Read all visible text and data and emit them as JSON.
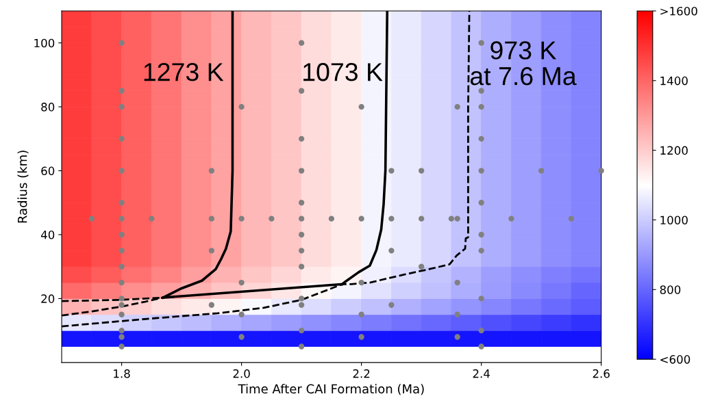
{
  "chart_data": {
    "type": "scatter",
    "xlabel": "Time After CAI Formation (Ma)",
    "ylabel": "Radius (km)",
    "xlim": [
      1.7,
      2.6
    ],
    "xticks": [
      {
        "value": 1.8,
        "label": "1.8"
      },
      {
        "value": 2.0,
        "label": "2.0"
      },
      {
        "value": 2.2,
        "label": "2.2"
      },
      {
        "value": 2.4,
        "label": "2.4"
      },
      {
        "value": 2.6,
        "label": "2.6"
      }
    ],
    "ylim": [
      0,
      110
    ],
    "yticks": [
      20,
      40,
      60,
      80,
      100
    ],
    "clim": [
      600,
      1600
    ],
    "cticks": [
      {
        "value": 600,
        "label": "<600"
      },
      800,
      1000,
      1200,
      1400,
      {
        "value": 1600,
        "label": ">1600"
      }
    ],
    "annotations": [
      "1273 K",
      "1073 K",
      "973 K\nat 7.6 Ma"
    ],
    "series": [
      {
        "type": "scatter",
        "marker": "square",
        "colors": [
          "#1414ff",
          "#1414ff",
          "#1414ff",
          "#1414ff",
          "#1414ff",
          "#1414ff",
          "#1414ff",
          "#1414ff",
          "#1414ff",
          "#1414ff",
          "#1414ff",
          "#1414ff",
          "#1414ff",
          "#1414ff",
          "#1414ff",
          "#1414ff",
          "#1414ff",
          "#1414ff",
          "#e6e6ff",
          "#dbdbff",
          "#d1d1ff",
          "#c7c7ff",
          "#bdbdff",
          "#b0b0ff",
          "#a6a6ff",
          "#9c9cff",
          "#9191ff",
          "#8787ff",
          "#7d7dff",
          "#7373ff",
          "#6969ff",
          "#5e5eff",
          "#5252ff",
          "#4747ff",
          "#3d3dff",
          "#3333ff",
          "#ffb3b3",
          "#ffc2c2",
          "#ffcfcf",
          "#ffdede",
          "#ffebeb",
          "#fff5f5",
          "#f7f7ff",
          "#e8e8ff",
          "#dbdbff",
          "#ccccff",
          "#bfbfff",
          "#b0b0ff",
          "#a3a3ff",
          "#9494ff",
          "#8787ff",
          "#7878ff",
          "#6b6bff",
          "#5c5cff",
          "#ff6b6b",
          "#ff7d7d",
          "#ff8f8f",
          "#ffa1a1",
          "#ffb3b3",
          "#ffc4c4",
          "#ffd6d6",
          "#ffe6e6",
          "#fff7f7",
          "#f5f5ff",
          "#e3e3ff",
          "#d1d1ff",
          "#bfbfff",
          "#adadff",
          "#9c9cff",
          "#8a8aff",
          "#7878ff",
          "#6666ff",
          "#ff4d4d",
          "#ff5c5c",
          "#ff7070",
          "#ff8585",
          "#ff9e9e",
          "#ffb3b3",
          "#ffc7c7",
          "#ffd6d6",
          "#ffebeb",
          "#fff5f5",
          "#f0f0ff",
          "#dbdbff",
          "#c7c7ff",
          "#b3b3ff",
          "#9e9eff",
          "#8f8fff",
          "#8080ff",
          "#7575ff",
          "#ff3d3d",
          "#ff4d4d",
          "#ff6161",
          "#ff7575",
          "#ff8f8f",
          "#ffa3a3",
          "#ffb8b8",
          "#ffc7c7",
          "#ffdbdb",
          "#ffebeb",
          "#f5f5ff",
          "#ebebff",
          "#d6d6ff",
          "#c2c2ff",
          "#adadff",
          "#9e9eff",
          "#8f8fff",
          "#8585ff",
          "#ff3d3d",
          "#ff4d4d",
          "#ff6161",
          "#ff7575",
          "#ff8f8f",
          "#ffa3a3",
          "#ffb8b8",
          "#ffc7c7",
          "#ffdbdb",
          "#ffebeb",
          "#f5f5ff",
          "#ebebff",
          "#d6d6ff",
          "#c2c2ff",
          "#adadff",
          "#9e9eff",
          "#8f8fff",
          "#8585ff",
          "#ff3d3d",
          "#ff4d4d",
          "#ff6161",
          "#ff7575",
          "#ff8f8f",
          "#ffa3a3",
          "#ffb8b8",
          "#ffc7c7",
          "#ffdbdb",
          "#ffebeb",
          "#f5f5ff",
          "#ebebff",
          "#d6d6ff",
          "#c2c2ff",
          "#adadff",
          "#9e9eff",
          "#8f8fff",
          "#8585ff",
          "#ff3d3d",
          "#ff4d4d",
          "#ff6161",
          "#ff7575",
          "#ff8f8f",
          "#ffa3a3",
          "#ffb8b8",
          "#ffc7c7",
          "#ffdbdb",
          "#ffebeb",
          "#f5f5ff",
          "#ebebff",
          "#d6d6ff",
          "#c2c2ff",
          "#adadff",
          "#9e9eff",
          "#8f8fff",
          "#8585ff",
          "#ff3d3d",
          "#ff4d4d",
          "#ff6161",
          "#ff7575",
          "#ff8f8f",
          "#ffa3a3",
          "#ffb8b8",
          "#ffc7c7",
          "#ffdbdb",
          "#ffebeb",
          "#f5f5ff",
          "#ebebff",
          "#d6d6ff",
          "#c2c2ff",
          "#adadff",
          "#9e9eff",
          "#8f8fff",
          "#8585ff",
          "#ff3d3d",
          "#ff4d4d",
          "#ff6161",
          "#ff7575",
          "#ff8f8f",
          "#ffa3a3",
          "#ffb8b8",
          "#ffc7c7",
          "#ffdbdb",
          "#ffebeb",
          "#f5f5ff",
          "#ebebff",
          "#d6d6ff",
          "#c2c2ff",
          "#adadff",
          "#9e9eff",
          "#8f8fff",
          "#8585ff",
          "#ff3d3d",
          "#ff4d4d",
          "#ff6161",
          "#ff7575",
          "#ff8f8f",
          "#ffa3a3",
          "#ffb8b8",
          "#ffc7c7",
          "#ffdbdb",
          "#ffebeb",
          "#f5f5ff",
          "#ebebff",
          "#d6d6ff",
          "#c2c2ff",
          "#adadff",
          "#9e9eff",
          "#8f8fff",
          "#8585ff",
          "#ff3d3d",
          "#ff4d4d",
          "#ff6161",
          "#ff7575",
          "#ff8f8f",
          "#ffa3a3",
          "#ffb8b8",
          "#ffc7c7",
          "#ffdbdb",
          "#ffebeb",
          "#f5f5ff",
          "#ebebff",
          "#d6d6ff",
          "#c2c2ff",
          "#adadff",
          "#9e9eff",
          "#8f8fff",
          "#8585ff",
          "#ff3d3d",
          "#ff4d4d",
          "#ff6161",
          "#ff7575",
          "#ff8f8f",
          "#ffa3a3",
          "#ffb8b8",
          "#ffc7c7",
          "#ffdbdb",
          "#ffebeb",
          "#f5f5ff",
          "#ebebff",
          "#d6d6ff",
          "#c2c2ff",
          "#adadff",
          "#9e9eff",
          "#8f8fff",
          "#8585ff",
          "#ff3d3d",
          "#ff4d4d",
          "#ff6161",
          "#ff7575",
          "#ff8f8f",
          "#ffa3a3",
          "#ffb8b8",
          "#ffc7c7",
          "#ffdbdb",
          "#ffebeb",
          "#f5f5ff",
          "#ebebff",
          "#d6d6ff",
          "#c2c2ff",
          "#adadff",
          "#9e9eff",
          "#8f8fff",
          "#8585ff",
          "#ff3d3d",
          "#ff4d4d",
          "#ff6161",
          "#ff7575",
          "#ff8f8f",
          "#ffa3a3",
          "#ffb8b8",
          "#ffc7c7",
          "#ffdbdb",
          "#ffebeb",
          "#f5f5ff",
          "#ebebff",
          "#d6d6ff",
          "#c2c2ff",
          "#adadff",
          "#9e9eff",
          "#8f8fff",
          "#8585ff",
          "#ff3d3d",
          "#ff4d4d",
          "#ff6161",
          "#ff7575",
          "#ff8f8f",
          "#ffa3a3",
          "#ffb8b8",
          "#ffc7c7",
          "#ffdbdb",
          "#ffebeb",
          "#f5f5ff",
          "#ebebff",
          "#d6d6ff",
          "#c2c2ff",
          "#adadff",
          "#9e9eff",
          "#8f8fff",
          "#8585ff",
          "#ff3d3d",
          "#ff4d4d",
          "#ff6161",
          "#ff7575",
          "#ff8f8f",
          "#ffa3a3",
          "#ffb8b8",
          "#ffc7c7",
          "#ffdbdb",
          "#ffebeb",
          "#f5f5ff",
          "#ebebff",
          "#d6d6ff",
          "#c2c2ff",
          "#adadff",
          "#9e9eff",
          "#8f8fff",
          "#8585ff",
          "#ff3d3d",
          "#ff4d4d",
          "#ff6161",
          "#ff7575",
          "#ff8f8f",
          "#ffa3a3",
          "#ffb8b8",
          "#ffc7c7",
          "#ffdbdb",
          "#ffebeb",
          "#f5f5ff",
          "#ebebff",
          "#d6d6ff",
          "#c2c2ff",
          "#adadff",
          "#9e9eff",
          "#8f8fff",
          "#8585ff",
          "#ff3d3d",
          "#ff4d4d",
          "#ff6161",
          "#ff7575",
          "#ff8f8f",
          "#ffa3a3",
          "#ffb8b8",
          "#ffc7c7",
          "#ffdbdb",
          "#ffebeb",
          "#f5f5ff",
          "#ebebff",
          "#d6d6ff",
          "#c2c2ff",
          "#adadff",
          "#9e9eff",
          "#8f8fff",
          "#8585ff",
          "#ff3d3d",
          "#ff4d4d",
          "#ff6161",
          "#ff7575",
          "#ff8f8f",
          "#ffa3a3",
          "#ffb8b8",
          "#ffc7c7",
          "#ffdbdb",
          "#ffebeb",
          "#f5f5ff",
          "#ebebff",
          "#d6d6ff",
          "#c2c2ff",
          "#adadff",
          "#9e9eff",
          "#8f8fff",
          "#8585ff"
        ],
        "x": [
          1.725,
          1.775,
          1.825,
          1.875,
          1.925,
          1.975,
          2.025,
          2.075,
          2.125,
          2.175,
          2.225,
          2.275,
          2.325,
          2.375,
          2.425,
          2.475,
          2.525,
          2.575,
          1.725,
          1.775,
          1.825,
          1.875,
          1.925,
          1.975,
          2.025,
          2.075,
          2.125,
          2.175,
          2.225,
          2.275,
          2.325,
          2.375,
          2.425,
          2.475,
          2.525,
          2.575,
          1.725,
          1.775,
          1.825,
          1.875,
          1.925,
          1.975,
          2.025,
          2.075,
          2.125,
          2.175,
          2.225,
          2.275,
          2.325,
          2.375,
          2.425,
          2.475,
          2.525,
          2.575,
          1.725,
          1.775,
          1.825,
          1.875,
          1.925,
          1.975,
          2.025,
          2.075,
          2.125,
          2.175,
          2.225,
          2.275,
          2.325,
          2.375,
          2.425,
          2.475,
          2.525,
          2.575,
          1.725,
          1.775,
          1.825,
          1.875,
          1.925,
          1.975,
          2.025,
          2.075,
          2.125,
          2.175,
          2.225,
          2.275,
          2.325,
          2.375,
          2.425,
          2.475,
          2.525,
          2.575,
          1.725,
          1.775,
          1.825,
          1.875,
          1.925,
          1.975,
          2.025,
          2.075,
          2.125,
          2.175,
          2.225,
          2.275,
          2.325,
          2.375,
          2.425,
          2.475,
          2.525,
          2.575,
          1.725,
          1.775,
          1.825,
          1.875,
          1.925,
          1.975,
          2.025,
          2.075,
          2.125,
          2.175,
          2.225,
          2.275,
          2.325,
          2.375,
          2.425,
          2.475,
          2.525,
          2.575,
          1.725,
          1.775,
          1.825,
          1.875,
          1.925,
          1.975,
          2.025,
          2.075,
          2.125,
          2.175,
          2.225,
          2.275,
          2.325,
          2.375,
          2.425,
          2.475,
          2.525,
          2.575,
          1.725,
          1.775,
          1.825,
          1.875,
          1.925,
          1.975,
          2.025,
          2.075,
          2.125,
          2.175,
          2.225,
          2.275,
          2.325,
          2.375,
          2.425,
          2.475,
          2.525,
          2.575,
          1.725,
          1.775,
          1.825,
          1.875,
          1.925,
          1.975,
          2.025,
          2.075,
          2.125,
          2.175,
          2.225,
          2.275,
          2.325,
          2.375,
          2.425,
          2.475,
          2.525,
          2.575,
          1.725,
          1.775,
          1.825,
          1.875,
          1.925,
          1.975,
          2.025,
          2.075,
          2.125,
          2.175,
          2.225,
          2.275,
          2.325,
          2.375,
          2.425,
          2.475,
          2.525,
          2.575,
          1.725,
          1.775,
          1.825,
          1.875,
          1.925,
          1.975,
          2.025,
          2.075,
          2.125,
          2.175,
          2.225,
          2.275,
          2.325,
          2.375,
          2.425,
          2.475,
          2.525,
          2.575,
          1.725,
          1.775,
          1.825,
          1.875,
          1.925,
          1.975,
          2.025,
          2.075,
          2.125,
          2.175,
          2.225,
          2.275,
          2.325,
          2.375,
          2.425,
          2.475,
          2.525,
          2.575,
          1.725,
          1.775,
          1.825,
          1.875,
          1.925,
          1.975,
          2.025,
          2.075,
          2.125,
          2.175,
          2.225,
          2.275,
          2.325,
          2.375,
          2.425,
          2.475,
          2.525,
          2.575,
          1.725,
          1.775,
          1.825,
          1.875,
          1.925,
          1.975,
          2.025,
          2.075,
          2.125,
          2.175,
          2.225,
          2.275,
          2.325,
          2.375,
          2.425,
          2.475,
          2.525,
          2.575,
          1.725,
          1.775,
          1.825,
          1.875,
          1.925,
          1.975,
          2.025,
          2.075,
          2.125,
          2.175,
          2.225,
          2.275,
          2.325,
          2.375,
          2.425,
          2.475,
          2.525,
          2.575,
          1.725,
          1.775,
          1.825,
          1.875,
          1.925,
          1.975,
          2.025,
          2.075,
          2.125,
          2.175,
          2.225,
          2.275,
          2.325,
          2.375,
          2.425,
          2.475,
          2.525,
          2.575,
          1.725,
          1.775,
          1.825,
          1.875,
          1.925,
          1.975,
          2.025,
          2.075,
          2.125,
          2.175,
          2.225,
          2.275,
          2.325,
          2.375,
          2.425,
          2.475,
          2.525,
          2.575,
          1.725,
          1.775,
          1.825,
          1.875,
          1.925,
          1.975,
          2.025,
          2.075,
          2.125,
          2.175,
          2.225,
          2.275,
          2.325,
          2.375,
          2.425,
          2.475,
          2.525,
          2.575,
          1.725,
          1.775,
          1.825,
          1.875,
          1.925,
          1.975,
          2.025,
          2.075,
          2.125,
          2.175,
          2.225,
          2.275,
          2.325,
          2.375,
          2.425,
          2.475,
          2.525,
          2.575,
          1.725,
          1.775,
          1.825,
          1.875,
          1.925,
          1.975,
          2.025,
          2.075,
          2.125,
          2.175,
          2.225,
          2.275,
          2.325,
          2.375,
          2.425,
          2.475,
          2.525,
          2.575
        ],
        "values": [
          7.5,
          7.5,
          7.5,
          7.5,
          7.5,
          7.5,
          7.5,
          7.5,
          7.5,
          7.5,
          7.5,
          7.5,
          7.5,
          7.5,
          7.5,
          7.5,
          7.5,
          7.5,
          12.5,
          12.5,
          12.5,
          12.5,
          12.5,
          12.5,
          12.5,
          12.5,
          12.5,
          12.5,
          12.5,
          12.5,
          12.5,
          12.5,
          12.5,
          12.5,
          12.5,
          12.5,
          17.5,
          17.5,
          17.5,
          17.5,
          17.5,
          17.5,
          17.5,
          17.5,
          17.5,
          17.5,
          17.5,
          17.5,
          17.5,
          17.5,
          17.5,
          17.5,
          17.5,
          17.5,
          22.5,
          22.5,
          22.5,
          22.5,
          22.5,
          22.5,
          22.5,
          22.5,
          22.5,
          22.5,
          22.5,
          22.5,
          22.5,
          22.5,
          22.5,
          22.5,
          22.5,
          22.5,
          27.5,
          27.5,
          27.5,
          27.5,
          27.5,
          27.5,
          27.5,
          27.5,
          27.5,
          27.5,
          27.5,
          27.5,
          27.5,
          27.5,
          27.5,
          27.5,
          27.5,
          27.5,
          32.5,
          32.5,
          32.5,
          32.5,
          32.5,
          32.5,
          32.5,
          32.5,
          32.5,
          32.5,
          32.5,
          32.5,
          32.5,
          32.5,
          32.5,
          32.5,
          32.5,
          32.5,
          37.5,
          37.5,
          37.5,
          37.5,
          37.5,
          37.5,
          37.5,
          37.5,
          37.5,
          37.5,
          37.5,
          37.5,
          37.5,
          37.5,
          37.5,
          37.5,
          37.5,
          37.5,
          42.5,
          42.5,
          42.5,
          42.5,
          42.5,
          42.5,
          42.5,
          42.5,
          42.5,
          42.5,
          42.5,
          42.5,
          42.5,
          42.5,
          42.5,
          42.5,
          42.5,
          42.5,
          47.5,
          47.5,
          47.5,
          47.5,
          47.5,
          47.5,
          47.5,
          47.5,
          47.5,
          47.5,
          47.5,
          47.5,
          47.5,
          47.5,
          47.5,
          47.5,
          47.5,
          47.5,
          52.5,
          52.5,
          52.5,
          52.5,
          52.5,
          52.5,
          52.5,
          52.5,
          52.5,
          52.5,
          52.5,
          52.5,
          52.5,
          52.5,
          52.5,
          52.5,
          52.5,
          52.5,
          57.5,
          57.5,
          57.5,
          57.5,
          57.5,
          57.5,
          57.5,
          57.5,
          57.5,
          57.5,
          57.5,
          57.5,
          57.5,
          57.5,
          57.5,
          57.5,
          57.5,
          57.5,
          62.5,
          62.5,
          62.5,
          62.5,
          62.5,
          62.5,
          62.5,
          62.5,
          62.5,
          62.5,
          62.5,
          62.5,
          62.5,
          62.5,
          62.5,
          62.5,
          62.5,
          62.5,
          67.5,
          67.5,
          67.5,
          67.5,
          67.5,
          67.5,
          67.5,
          67.5,
          67.5,
          67.5,
          67.5,
          67.5,
          67.5,
          67.5,
          67.5,
          67.5,
          67.5,
          67.5,
          72.5,
          72.5,
          72.5,
          72.5,
          72.5,
          72.5,
          72.5,
          72.5,
          72.5,
          72.5,
          72.5,
          72.5,
          72.5,
          72.5,
          72.5,
          72.5,
          72.5,
          72.5,
          77.5,
          77.5,
          77.5,
          77.5,
          77.5,
          77.5,
          77.5,
          77.5,
          77.5,
          77.5,
          77.5,
          77.5,
          77.5,
          77.5,
          77.5,
          77.5,
          77.5,
          77.5,
          82.5,
          82.5,
          82.5,
          82.5,
          82.5,
          82.5,
          82.5,
          82.5,
          82.5,
          82.5,
          82.5,
          82.5,
          82.5,
          82.5,
          82.5,
          82.5,
          82.5,
          82.5,
          87.5,
          87.5,
          87.5,
          87.5,
          87.5,
          87.5,
          87.5,
          87.5,
          87.5,
          87.5,
          87.5,
          87.5,
          87.5,
          87.5,
          87.5,
          87.5,
          87.5,
          87.5,
          92.5,
          92.5,
          92.5,
          92.5,
          92.5,
          92.5,
          92.5,
          92.5,
          92.5,
          92.5,
          92.5,
          92.5,
          92.5,
          92.5,
          92.5,
          92.5,
          92.5,
          92.5,
          97.5,
          97.5,
          97.5,
          97.5,
          97.5,
          97.5,
          97.5,
          97.5,
          97.5,
          97.5,
          97.5,
          97.5,
          97.5,
          97.5,
          97.5,
          97.5,
          97.5,
          97.5,
          102.5,
          102.5,
          102.5,
          102.5,
          102.5,
          102.5,
          102.5,
          102.5,
          102.5,
          102.5,
          102.5,
          102.5,
          102.5,
          102.5,
          102.5,
          102.5,
          102.5,
          102.5,
          107.5,
          107.5,
          107.5,
          107.5,
          107.5,
          107.5,
          107.5,
          107.5,
          107.5,
          107.5,
          107.5,
          107.5,
          107.5,
          107.5,
          107.5,
          107.5,
          107.5,
          107.5
        ],
        "cvalues": [
          640,
          640,
          640,
          640,
          640,
          640,
          640,
          640,
          640,
          640,
          640,
          640,
          640,
          640,
          640,
          640,
          640,
          640,
          1050,
          1030,
          1010,
          990,
          970,
          945,
          925,
          905,
          885,
          865,
          845,
          825,
          805,
          785,
          760,
          740,
          720,
          700,
          1250,
          1220,
          1195,
          1165,
          1140,
          1120,
          1085,
          1055,
          1030,
          1000,
          975,
          945,
          920,
          890,
          865,
          835,
          810,
          780,
          1390,
          1355,
          1320,
          1285,
          1250,
          1215,
          1180,
          1150,
          1115,
          1080,
          1045,
          1010,
          975,
          940,
          905,
          870,
          835,
          800,
          1450,
          1420,
          1380,
          1340,
          1290,
          1250,
          1210,
          1180,
          1140,
          1120,
          1070,
          1030,
          990,
          950,
          910,
          880,
          850,
          830,
          1480,
          1450,
          1410,
          1370,
          1320,
          1280,
          1240,
          1210,
          1170,
          1140,
          1080,
          1060,
          1020,
          980,
          940,
          910,
          880,
          860,
          1480,
          1450,
          1410,
          1370,
          1320,
          1280,
          1240,
          1210,
          1170,
          1140,
          1080,
          1060,
          1020,
          980,
          940,
          910,
          880,
          860,
          1480,
          1450,
          1410,
          1370,
          1320,
          1280,
          1240,
          1210,
          1170,
          1140,
          1080,
          1060,
          1020,
          980,
          940,
          910,
          880,
          860,
          1480,
          1450,
          1410,
          1370,
          1320,
          1280,
          1240,
          1210,
          1170,
          1140,
          1080,
          1060,
          1020,
          980,
          940,
          910,
          880,
          860,
          1480,
          1450,
          1410,
          1370,
          1320,
          1280,
          1240,
          1210,
          1170,
          1140,
          1080,
          1060,
          1020,
          980,
          940,
          910,
          880,
          860,
          1480,
          1450,
          1410,
          1370,
          1320,
          1280,
          1240,
          1210,
          1170,
          1140,
          1080,
          1060,
          1020,
          980,
          940,
          910,
          880,
          860,
          1480,
          1450,
          1410,
          1370,
          1320,
          1280,
          1240,
          1210,
          1170,
          1140,
          1080,
          1060,
          1020,
          980,
          940,
          910,
          880,
          860,
          1480,
          1450,
          1410,
          1370,
          1320,
          1280,
          1240,
          1210,
          1170,
          1140,
          1080,
          1060,
          1020,
          980,
          940,
          910,
          880,
          860,
          1480,
          1450,
          1410,
          1370,
          1320,
          1280,
          1240,
          1210,
          1170,
          1140,
          1080,
          1060,
          1020,
          980,
          940,
          910,
          880,
          860,
          1480,
          1450,
          1410,
          1370,
          1320,
          1280,
          1240,
          1210,
          1170,
          1140,
          1080,
          1060,
          1020,
          980,
          940,
          910,
          880,
          860,
          1480,
          1450,
          1410,
          1370,
          1320,
          1280,
          1240,
          1210,
          1170,
          1140,
          1080,
          1060,
          1020,
          980,
          940,
          910,
          880,
          860,
          1480,
          1450,
          1410,
          1370,
          1320,
          1280,
          1240,
          1210,
          1170,
          1140,
          1080,
          1060,
          1020,
          980,
          940,
          910,
          880,
          860,
          1480,
          1450,
          1410,
          1370,
          1320,
          1280,
          1240,
          1210,
          1170,
          1140,
          1080,
          1060,
          1020,
          980,
          940,
          910,
          880,
          860,
          1480,
          1450,
          1410,
          1370,
          1320,
          1280,
          1240,
          1210,
          1170,
          1140,
          1080,
          1060,
          1020,
          980,
          940,
          910,
          880,
          860,
          1480,
          1450,
          1410,
          1370,
          1320,
          1280,
          1240,
          1210,
          1170,
          1140,
          1080,
          1060,
          1020,
          980,
          940,
          910,
          880,
          860,
          1480,
          1450,
          1410,
          1370,
          1320,
          1280,
          1240,
          1210,
          1170,
          1140,
          1080,
          1060,
          1020,
          980,
          940,
          910,
          880,
          860
        ]
      },
      {
        "type": "line",
        "color": "#000000",
        "line_style": "solid",
        "x": [
          1.985,
          1.985,
          1.982,
          1.974,
          1.966,
          1.957,
          1.934,
          1.9,
          1.869
        ],
        "values": [
          110,
          60,
          41,
          35.6,
          32.4,
          29.2,
          25.6,
          23.2,
          20.3
        ]
      },
      {
        "type": "line",
        "color": "#000000",
        "line_style": "solid",
        "x": [
          1.869,
          2.168
        ],
        "values": [
          20.3,
          24.5
        ]
      },
      {
        "type": "line",
        "color": "#000000",
        "line_style": "solid",
        "x": [
          2.243,
          2.24,
          2.237,
          2.233,
          2.225,
          2.214,
          2.195,
          2.174,
          2.168
        ],
        "values": [
          110,
          60,
          49.5,
          41.6,
          35.2,
          30.3,
          28.2,
          25.4,
          24.5
        ]
      },
      {
        "type": "line",
        "color": "#000000",
        "line_style": "dashed",
        "x": [
          1.7,
          1.8,
          1.869
        ],
        "values": [
          19.2,
          19.6,
          20.3
        ]
      },
      {
        "type": "line",
        "color": "#000000",
        "line_style": "dashed",
        "x": [
          1.7,
          1.751,
          1.8,
          1.839,
          1.869
        ],
        "values": [
          14.7,
          16,
          17.5,
          19,
          20.3
        ]
      },
      {
        "type": "line",
        "color": "#000000",
        "line_style": "dashed",
        "x": [
          1.7,
          1.846,
          1.96,
          2.037,
          2.1,
          2.131,
          2.168,
          2.183,
          2.214,
          2.271,
          2.313,
          2.347,
          2.359,
          2.373,
          2.374,
          2.378,
          2.378,
          2.38
        ],
        "values": [
          11.3,
          13.7,
          15.4,
          17.1,
          19.6,
          21.8,
          24.5,
          24.5,
          25,
          27.5,
          29.2,
          30.7,
          33.5,
          35.6,
          38.8,
          39.2,
          80,
          110
        ]
      },
      {
        "color": "#808080",
        "marker": "circle",
        "x": [
          1.8,
          1.8,
          1.8,
          1.8,
          1.8,
          1.8,
          1.8,
          1.8,
          1.8,
          1.8,
          1.8,
          1.8,
          1.8,
          1.8,
          1.8,
          1.8,
          1.8,
          1.75,
          1.85,
          1.95,
          1.95,
          1.95,
          1.95,
          2.0,
          2.0,
          2.0,
          2.0,
          2.0,
          2.05,
          2.1,
          2.1,
          2.1,
          2.1,
          2.1,
          2.1,
          2.1,
          2.1,
          2.1,
          2.1,
          2.1,
          2.1,
          2.1,
          2.15,
          2.2,
          2.2,
          2.2,
          2.2,
          2.2,
          2.25,
          2.25,
          2.25,
          2.25,
          2.3,
          2.3,
          2.3,
          2.35,
          2.36,
          2.36,
          2.36,
          2.36,
          2.36,
          2.4,
          2.4,
          2.4,
          2.4,
          2.4,
          2.4,
          2.4,
          2.4,
          2.4,
          2.4,
          2.4,
          2.45,
          2.5,
          2.55,
          2.6
        ],
        "values": [
          100,
          85,
          80,
          70,
          60,
          50,
          45,
          40,
          35,
          30,
          25,
          20,
          18,
          15,
          10,
          8,
          5,
          45,
          45,
          60,
          45,
          35,
          18,
          80,
          45,
          25,
          15,
          8,
          45,
          100,
          85,
          70,
          60,
          50,
          45,
          40,
          35,
          30,
          20,
          18,
          10,
          5,
          45,
          80,
          45,
          25,
          15,
          8,
          60,
          45,
          35,
          18,
          60,
          45,
          30,
          45,
          80,
          45,
          25,
          15,
          8,
          100,
          85,
          80,
          70,
          60,
          50,
          40,
          35,
          20,
          10,
          5,
          45,
          60,
          45,
          60
        ]
      }
    ]
  }
}
